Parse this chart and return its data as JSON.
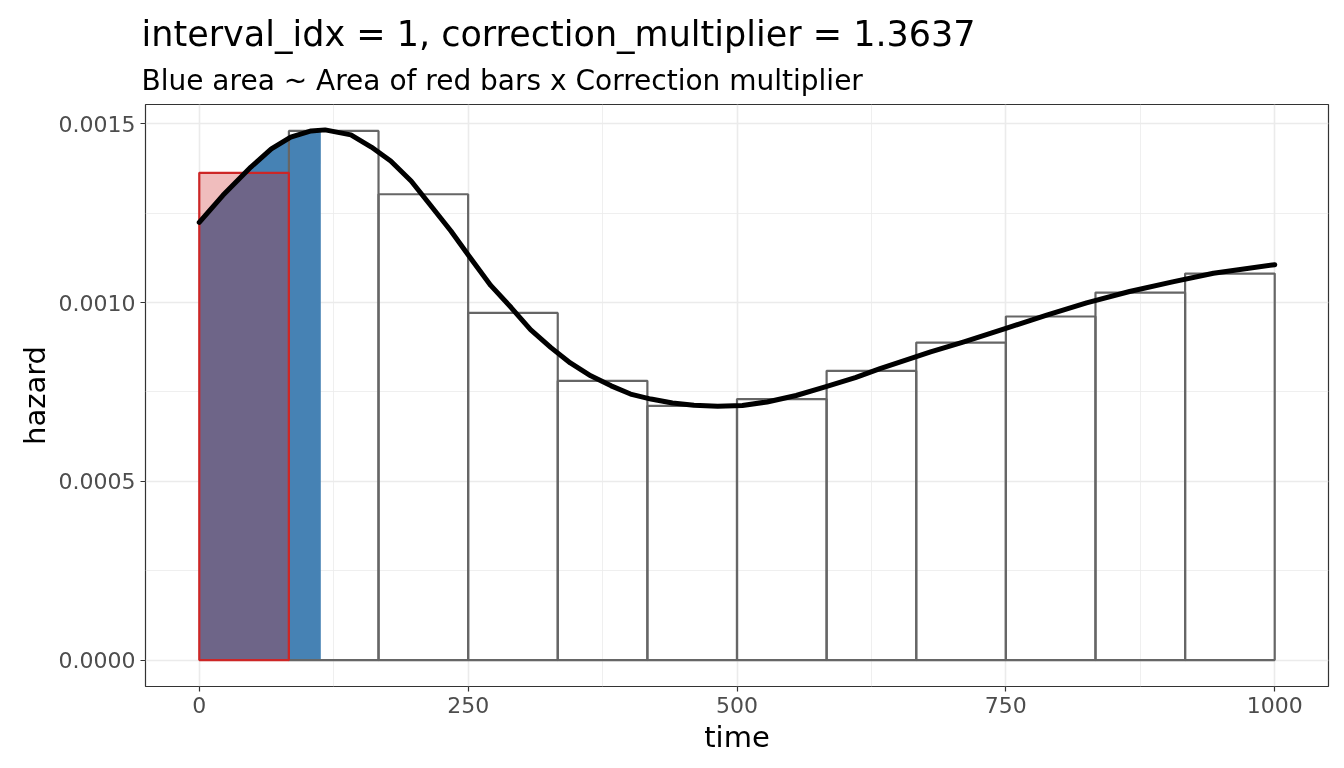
{
  "chart_data": {
    "type": "histogram",
    "title": "interval_idx = 1, correction_multiplier = 1.3637",
    "subtitle": "Blue area ~ Area of red bars x Correction multiplier",
    "xlabel": "time",
    "ylabel": "hazard",
    "xlim": [
      -50,
      1050
    ],
    "ylim": [
      -7.4e-05,
      0.001554
    ],
    "xticks": [
      0,
      250,
      500,
      750,
      1000
    ],
    "yticks": [
      {
        "value": 0,
        "label": "0.0000"
      },
      {
        "value": 0.0005,
        "label": "0.0005"
      },
      {
        "value": 0.001,
        "label": "0.0010"
      },
      {
        "value": 0.0015,
        "label": "0.0015"
      }
    ],
    "grid": true,
    "series": [
      {
        "type": "area",
        "color": "#4682b4",
        "x": [
          0,
          22,
          48,
          67,
          85,
          104,
          113
        ],
        "values": [
          0.001224,
          0.0013,
          0.001379,
          0.00143,
          0.001463,
          0.00148,
          0.001482
        ]
      },
      {
        "color": "#666666",
        "bins": [
          0,
          83.33,
          166.67,
          250,
          333.33,
          416.67,
          500,
          583.33,
          666.67,
          750,
          833.33,
          916.67,
          1000
        ],
        "values": [
          null,
          0.00148,
          0.001303,
          0.000971,
          0.000781,
          0.000711,
          0.00073,
          0.000809,
          0.000888,
          0.000961,
          0.001028,
          0.001081
        ]
      },
      {
        "type": "histogram",
        "color": "#cd2626",
        "colors": [
          "#cd2626"
        ],
        "bins": [
          0,
          83.33
        ],
        "values": [
          0.001363
        ]
      },
      {
        "type": "line",
        "color": "#000000",
        "x": [
          0,
          22,
          48,
          67,
          85,
          104,
          117,
          141,
          160,
          178,
          197,
          215,
          234,
          253,
          271,
          290,
          308,
          327,
          345,
          364,
          383,
          401,
          420,
          440,
          460,
          482,
          505,
          528,
          555,
          582,
          610,
          633,
          652,
          680,
          711,
          750,
          788,
          825,
          865,
          905,
          943,
          1000
        ],
        "values": [
          0.001224,
          0.0013,
          0.001379,
          0.00143,
          0.001463,
          0.00148,
          0.001483,
          0.001469,
          0.001435,
          0.001396,
          0.00134,
          0.001272,
          0.0012,
          0.001121,
          0.001048,
          0.000986,
          0.000924,
          0.000874,
          0.000831,
          0.000795,
          0.000767,
          0.000744,
          0.00073,
          0.000719,
          0.000713,
          0.00071,
          0.000712,
          0.000722,
          0.00074,
          0.000764,
          0.00079,
          0.000815,
          0.000834,
          0.000862,
          0.00089,
          0.000928,
          0.000965,
          0.000999,
          0.001031,
          0.001058,
          0.001082,
          0.001106
        ]
      }
    ]
  }
}
